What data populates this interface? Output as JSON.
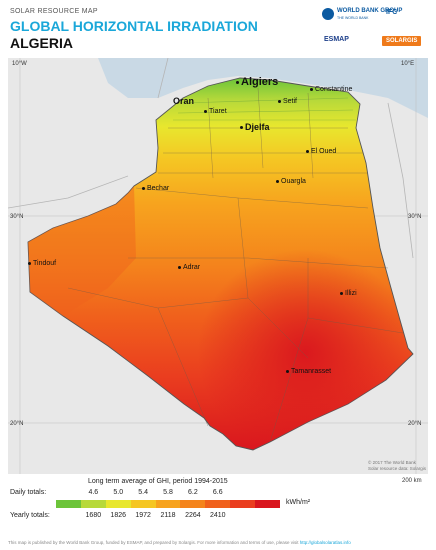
{
  "header": {
    "kicker": "SOLAR RESOURCE MAP",
    "title": "GLOBAL HORIZONTAL IRRADIATION",
    "country": "ALGERIA"
  },
  "logos": {
    "world_bank": "WORLD BANK GROUP",
    "world_bank_sub": "THE WORLD BANK",
    "ifc": "IFC",
    "esmap": "ESMAP",
    "solargis": "SOLARGIS"
  },
  "map": {
    "ticks": {
      "lon_left": "10°W",
      "lon_right": "10°E",
      "lat_30_left": "30°N",
      "lat_30_right": "30°N",
      "lat_20_left": "20°N",
      "lat_20_right": "20°N"
    },
    "cities": [
      {
        "name": "Algiers",
        "size": "big"
      },
      {
        "name": "Oran",
        "size": "mid"
      },
      {
        "name": "Constantine",
        "size": "small"
      },
      {
        "name": "Setif",
        "size": "small"
      },
      {
        "name": "Tiaret",
        "size": "small"
      },
      {
        "name": "Djelfa",
        "size": "mid"
      },
      {
        "name": "El Oued",
        "size": "small"
      },
      {
        "name": "Bechar",
        "size": "small"
      },
      {
        "name": "Ouargla",
        "size": "small"
      },
      {
        "name": "Tindouf",
        "size": "small"
      },
      {
        "name": "Adrar",
        "size": "small"
      },
      {
        "name": "Illizi",
        "size": "small"
      },
      {
        "name": "Tamanrasset",
        "size": "small"
      }
    ],
    "credit_line1": "© 2017 The World Bank",
    "credit_line2": "Solar resource data: Solargis",
    "scale_label": "200 km"
  },
  "legend": {
    "caption": "Long term average of GHI, period 1994-2015",
    "daily_label": "Daily totals:",
    "yearly_label": "Yearly totals:",
    "unit": "kWh/m²",
    "colors": [
      "#6cc43a",
      "#b7d93a",
      "#e8e72e",
      "#f5c623",
      "#f7a31e",
      "#f4841c",
      "#f0611c",
      "#ea3e1f",
      "#d9161e"
    ],
    "daily_values": [
      "4.6",
      "5.0",
      "5.4",
      "5.8",
      "6.2",
      "6.6"
    ],
    "yearly_values": [
      "1680",
      "1826",
      "1972",
      "2118",
      "2264",
      "2410"
    ]
  },
  "footer": {
    "text": "This map is published by the World Bank Group, funded by ESMAP, and prepared by Solargis. For more information and terms of use, please visit",
    "link": "http://globalsolaratlas.info"
  }
}
